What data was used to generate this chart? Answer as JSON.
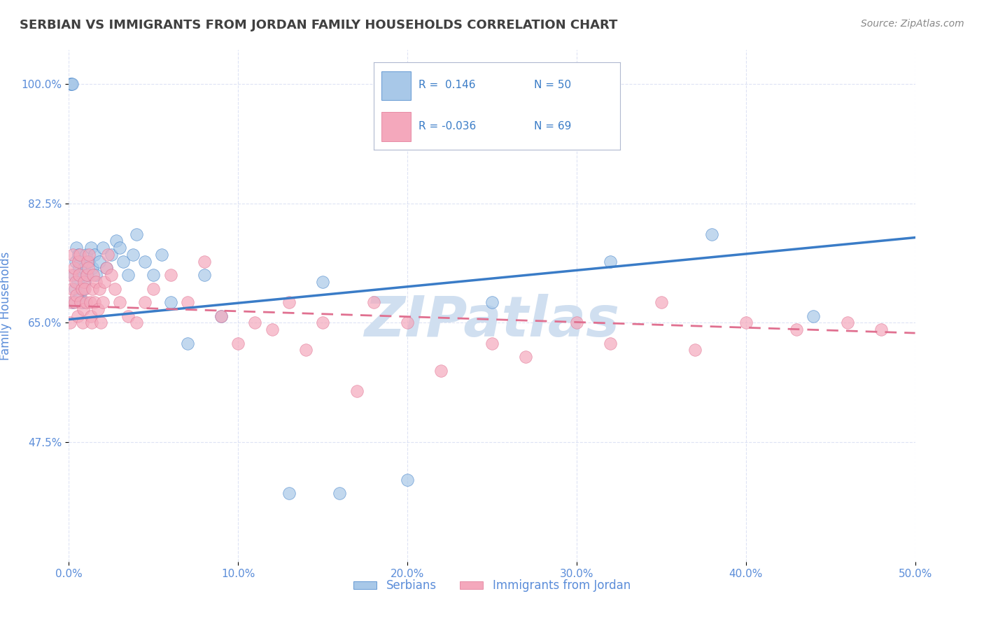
{
  "title": "SERBIAN VS IMMIGRANTS FROM JORDAN FAMILY HOUSEHOLDS CORRELATION CHART",
  "source": "Source: ZipAtlas.com",
  "ylabel": "Family Households",
  "x_min": 0.0,
  "x_max": 50.0,
  "y_min": 30.0,
  "y_max": 105.0,
  "y_ticks": [
    47.5,
    65.0,
    82.5,
    100.0
  ],
  "x_ticks": [
    0.0,
    10.0,
    20.0,
    30.0,
    40.0,
    50.0
  ],
  "serbian_R": 0.146,
  "serbian_N": 50,
  "jordan_R": -0.036,
  "jordan_N": 69,
  "serbian_color": "#a8c8e8",
  "jordan_color": "#f4a8bc",
  "trend_serbian_color": "#3a7cc7",
  "trend_jordan_color": "#e07090",
  "watermark": "ZIPatlas",
  "watermark_color": "#d0dff0",
  "background_color": "#ffffff",
  "title_color": "#404040",
  "axis_label_color": "#5b8dd9",
  "legend_R_color": "#3a7cc7",
  "legend_N_color": "#3a7cc7",
  "serbian_scatter_x": [
    0.1,
    0.15,
    0.2,
    0.25,
    0.3,
    0.35,
    0.4,
    0.45,
    0.5,
    0.55,
    0.6,
    0.65,
    0.7,
    0.75,
    0.8,
    0.85,
    0.9,
    0.95,
    1.0,
    1.1,
    1.2,
    1.3,
    1.4,
    1.5,
    1.6,
    1.8,
    2.0,
    2.2,
    2.5,
    2.8,
    3.0,
    3.2,
    3.5,
    3.8,
    4.0,
    4.5,
    5.0,
    5.5,
    6.0,
    7.0,
    8.0,
    9.0,
    13.0,
    15.0,
    16.0,
    20.0,
    25.0,
    32.0,
    38.0,
    44.0
  ],
  "serbian_scatter_y": [
    100.0,
    100.0,
    100.0,
    68.0,
    72.0,
    70.0,
    74.0,
    76.0,
    71.0,
    75.0,
    73.0,
    69.0,
    74.0,
    72.0,
    68.0,
    70.0,
    73.0,
    71.0,
    75.0,
    72.0,
    74.0,
    76.0,
    73.0,
    75.0,
    72.0,
    74.0,
    76.0,
    73.0,
    75.0,
    77.0,
    76.0,
    74.0,
    72.0,
    75.0,
    78.0,
    74.0,
    72.0,
    75.0,
    68.0,
    62.0,
    72.0,
    66.0,
    40.0,
    71.0,
    40.0,
    42.0,
    68.0,
    74.0,
    78.0,
    66.0
  ],
  "jordan_scatter_x": [
    0.05,
    0.1,
    0.15,
    0.2,
    0.25,
    0.3,
    0.35,
    0.4,
    0.45,
    0.5,
    0.55,
    0.6,
    0.65,
    0.7,
    0.75,
    0.8,
    0.85,
    0.9,
    0.95,
    1.0,
    1.05,
    1.1,
    1.15,
    1.2,
    1.25,
    1.3,
    1.35,
    1.4,
    1.45,
    1.5,
    1.6,
    1.7,
    1.8,
    1.9,
    2.0,
    2.1,
    2.2,
    2.3,
    2.5,
    2.7,
    3.0,
    3.5,
    4.0,
    4.5,
    5.0,
    6.0,
    7.0,
    8.0,
    9.0,
    10.0,
    11.0,
    12.0,
    13.0,
    14.0,
    15.0,
    17.0,
    18.0,
    20.0,
    22.0,
    25.0,
    27.0,
    30.0,
    32.0,
    35.0,
    37.0,
    40.0,
    43.0,
    46.0,
    48.0
  ],
  "jordan_scatter_y": [
    65.0,
    68.0,
    72.0,
    70.0,
    75.0,
    73.0,
    68.0,
    71.0,
    69.0,
    66.0,
    74.0,
    72.0,
    75.0,
    68.0,
    70.0,
    65.0,
    67.0,
    71.0,
    70.0,
    68.0,
    72.0,
    74.0,
    73.0,
    75.0,
    68.0,
    66.0,
    65.0,
    70.0,
    72.0,
    68.0,
    71.0,
    67.0,
    70.0,
    65.0,
    68.0,
    71.0,
    73.0,
    75.0,
    72.0,
    70.0,
    68.0,
    66.0,
    65.0,
    68.0,
    70.0,
    72.0,
    68.0,
    74.0,
    66.0,
    62.0,
    65.0,
    64.0,
    68.0,
    61.0,
    65.0,
    55.0,
    68.0,
    65.0,
    58.0,
    62.0,
    60.0,
    65.0,
    62.0,
    68.0,
    61.0,
    65.0,
    64.0,
    65.0,
    64.0
  ],
  "legend_serbian_label": "Serbians",
  "legend_jordan_label": "Immigrants from Jordan",
  "trend_serbian_x0": 0.0,
  "trend_serbian_y0": 65.5,
  "trend_serbian_x1": 50.0,
  "trend_serbian_y1": 77.5,
  "trend_jordan_x0": 0.0,
  "trend_jordan_y0": 67.5,
  "trend_jordan_x1": 50.0,
  "trend_jordan_y1": 63.5
}
